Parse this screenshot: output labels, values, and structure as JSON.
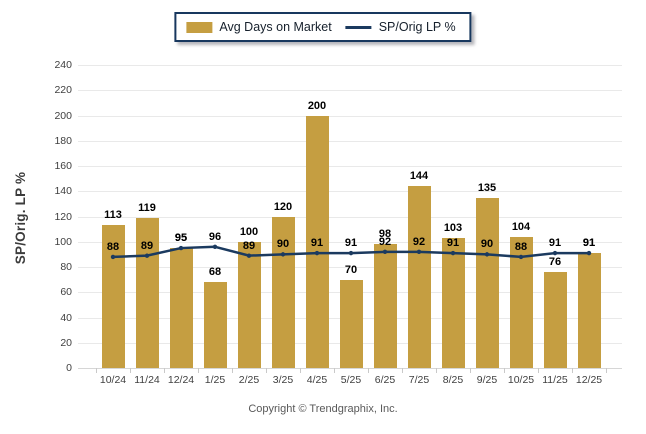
{
  "legend": {
    "bar_label": "Avg Days on Market",
    "line_label": "SP/Orig LP %"
  },
  "y_axis": {
    "title": "SP/Orig. LP %"
  },
  "footer": {
    "copyright": "Copyright © Trendgraphix, Inc."
  },
  "colors": {
    "bar": "#C59E41",
    "line": "#1B3A5F",
    "legend_border": "#17375E",
    "gridline": "#e9e9e9",
    "tick_text": "#404040",
    "data_label": "#000000"
  },
  "chart_data": {
    "type": "bar",
    "title": "",
    "xlabel": "",
    "ylabel": "SP/Orig. LP %",
    "ylim": [
      0,
      240
    ],
    "ytick_step": 20,
    "grid": true,
    "legend_position": "top",
    "categories": [
      "10/24",
      "11/24",
      "12/24",
      "1/25",
      "2/25",
      "3/25",
      "4/25",
      "5/25",
      "6/25",
      "7/25",
      "8/25",
      "9/25",
      "10/25",
      "11/25",
      "12/25"
    ],
    "series": [
      {
        "name": "Avg Days on Market",
        "type": "bar",
        "values": [
          113,
          119,
          95,
          68,
          100,
          120,
          200,
          70,
          98,
          144,
          103,
          135,
          104,
          76,
          91
        ]
      },
      {
        "name": "SP/Orig LP %",
        "type": "line",
        "values": [
          88,
          89,
          95,
          96,
          89,
          90,
          91,
          91,
          92,
          92,
          91,
          90,
          88,
          91,
          91
        ]
      }
    ]
  }
}
